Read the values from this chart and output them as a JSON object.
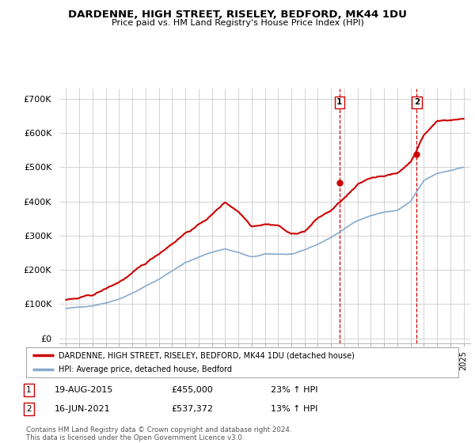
{
  "title": "DARDENNE, HIGH STREET, RISELEY, BEDFORD, MK44 1DU",
  "subtitle": "Price paid vs. HM Land Registry's House Price Index (HPI)",
  "yticks": [
    0,
    100000,
    200000,
    300000,
    400000,
    500000,
    600000,
    700000
  ],
  "ytick_labels": [
    "£0",
    "£100K",
    "£200K",
    "£300K",
    "£400K",
    "£500K",
    "£600K",
    "£700K"
  ],
  "ylim": [
    -15000,
    730000
  ],
  "red_line_color": "#cc0000",
  "blue_line_color": "#88aacc",
  "marker1_date": 2015.63,
  "marker1_value": 455000,
  "marker2_date": 2021.46,
  "marker2_value": 537372,
  "vline_color": "#cc0000",
  "legend_label_red": "DARDENNE, HIGH STREET, RISELEY, BEDFORD, MK44 1DU (detached house)",
  "legend_label_blue": "HPI: Average price, detached house, Bedford",
  "footnote1_label": "1",
  "footnote1_date": "19-AUG-2015",
  "footnote1_price": "£455,000",
  "footnote1_hpi": "23% ↑ HPI",
  "footnote2_label": "2",
  "footnote2_date": "16-JUN-2021",
  "footnote2_price": "£537,372",
  "footnote2_hpi": "13% ↑ HPI",
  "copyright_text": "Contains HM Land Registry data © Crown copyright and database right 2024.\nThis data is licensed under the Open Government Licence v3.0.",
  "background_color": "#ffffff",
  "grid_color": "#cccccc"
}
